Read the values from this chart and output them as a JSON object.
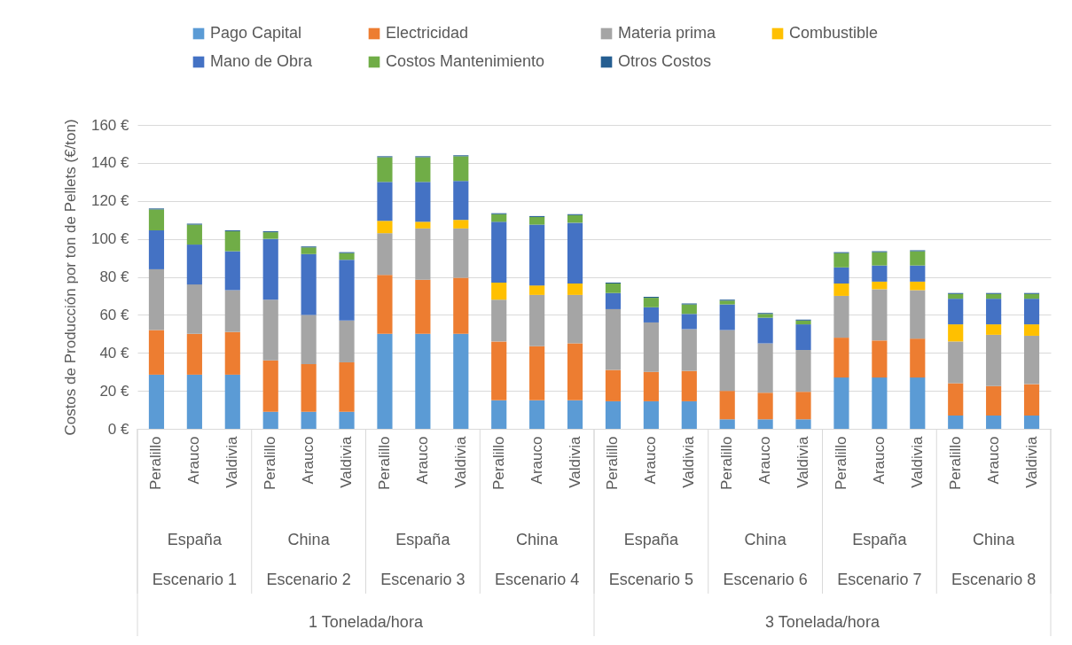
{
  "chart_data": {
    "type": "bar",
    "stacked": true,
    "ylabel": "Costos de Producción por ton de Pellets (€/ton)",
    "categories": [
      "Peralillo",
      "Arauco",
      "Valdivia",
      "Peralillo",
      "Arauco",
      "Valdivia",
      "Peralillo",
      "Arauco",
      "Valdivia",
      "Peralillo",
      "Arauco",
      "Valdivia",
      "Peralillo",
      "Arauco",
      "Valdivia",
      "Peralillo",
      "Arauco",
      "Valdivia",
      "Peralillo",
      "Arauco",
      "Valdivia",
      "Peralillo",
      "Arauco",
      "Valdivia"
    ],
    "series": [
      {
        "name": "Pago Capital",
        "color": "#5b9bd5",
        "values": [
          28.5,
          28.5,
          28.5,
          9,
          9,
          9,
          50,
          50,
          50,
          15,
          15,
          15,
          14.5,
          14.5,
          14.5,
          5,
          5,
          5,
          27,
          27,
          27,
          7,
          7,
          7
        ]
      },
      {
        "name": "Electricidad",
        "color": "#ed7d31",
        "values": [
          23.5,
          21.5,
          22.5,
          27,
          25,
          26,
          31,
          28.5,
          29.5,
          31,
          28.5,
          30,
          16.5,
          15.5,
          16,
          15,
          14,
          14.5,
          21,
          19.5,
          20.5,
          17,
          15.5,
          16.5
        ]
      },
      {
        "name": "Materia prima",
        "color": "#a5a5a5",
        "values": [
          32,
          26,
          22,
          32,
          26,
          22,
          22,
          27,
          26,
          22,
          27,
          25.5,
          32,
          26,
          22,
          32,
          26,
          22,
          22,
          27,
          25.5,
          22,
          27,
          25.5
        ]
      },
      {
        "name": "Combustible",
        "color": "#ffc000",
        "values": [
          0,
          0,
          0,
          0,
          0,
          0,
          6.5,
          3.5,
          4.5,
          9,
          5,
          6,
          0,
          0,
          0,
          0,
          0,
          0,
          6.5,
          4,
          4.5,
          9,
          5.5,
          6
        ]
      },
      {
        "name": "Mano de Obra",
        "color": "#4472c4",
        "values": [
          20.5,
          21,
          20.5,
          32,
          32,
          32,
          20.5,
          21,
          20.5,
          32,
          32,
          32,
          8.5,
          8,
          8,
          13.5,
          13.5,
          13.5,
          8.5,
          8.5,
          8.5,
          13.5,
          13.5,
          13.5
        ]
      },
      {
        "name": "Costos Mantenimiento",
        "color": "#70ad47",
        "values": [
          11,
          10.5,
          10.5,
          3.5,
          3.5,
          3.5,
          13,
          13,
          13,
          4,
          4,
          4,
          5,
          5,
          5,
          2,
          2,
          2,
          7.5,
          7,
          7.5,
          2.5,
          2.5,
          2.5
        ]
      },
      {
        "name": "Otros Costos",
        "color": "#255e91",
        "values": [
          0.5,
          0.5,
          0.5,
          0.5,
          0.5,
          0.5,
          0.5,
          0.5,
          0.5,
          0.5,
          0.5,
          0.5,
          0.5,
          0.5,
          0.5,
          0.5,
          0.5,
          0.5,
          0.5,
          0.5,
          0.5,
          0.5,
          0.5,
          0.5
        ]
      }
    ],
    "ylim": [
      0,
      160
    ],
    "yticks": [
      {
        "value": 0,
        "label": "0 €"
      },
      {
        "value": 20,
        "label": "20 €"
      },
      {
        "value": 40,
        "label": "40 €"
      },
      {
        "value": 60,
        "label": "60 €"
      },
      {
        "value": 80,
        "label": "80 €"
      },
      {
        "value": 100,
        "label": "100 €"
      },
      {
        "value": 120,
        "label": "120 €"
      },
      {
        "value": 140,
        "label": "140 €"
      },
      {
        "value": 160,
        "label": "160 €"
      }
    ],
    "grid": true,
    "legend": "top",
    "annotations": [
      "España",
      "China",
      "España",
      "China",
      "España",
      "China",
      "España",
      "China",
      "Escenario 1",
      "Escenario 2",
      "Escenario 3",
      "Escenario 4",
      "Escenario 5",
      "Escenario 6",
      "Escenario 7",
      "Escenario 8",
      "1 Tonelada/hora",
      "3 Tonelada/hora"
    ]
  }
}
